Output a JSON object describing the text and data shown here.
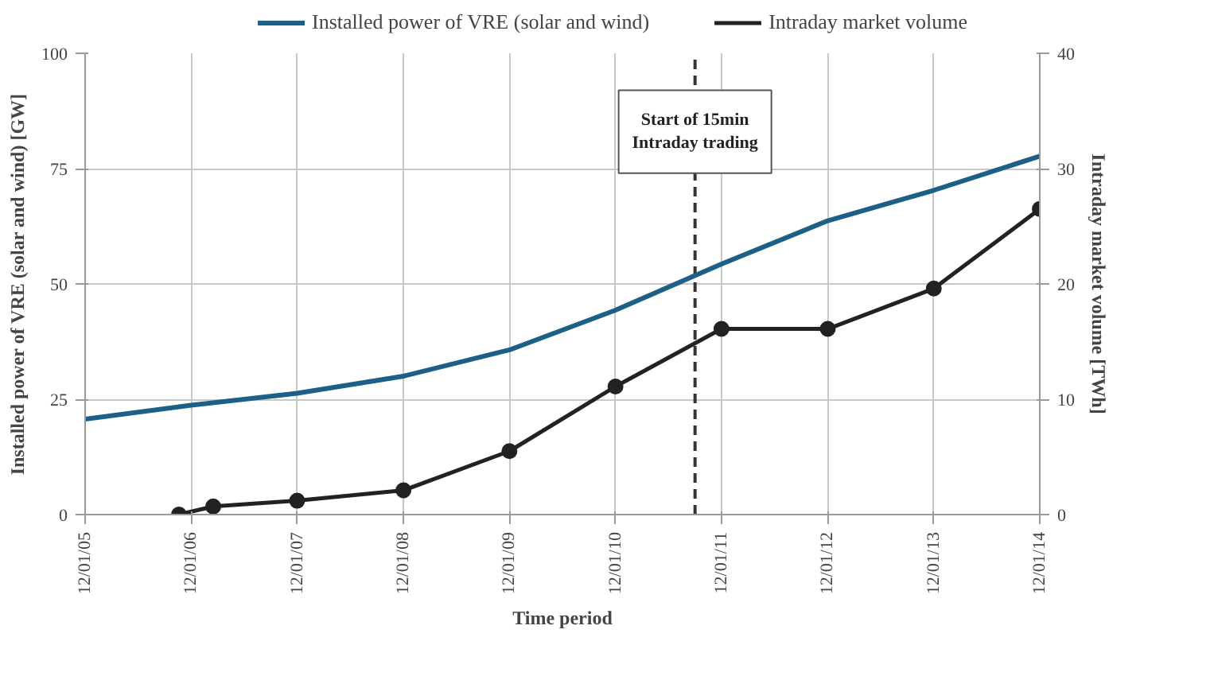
{
  "chart_data": {
    "type": "line",
    "xlabel": "Time period",
    "ylabel": "Installed power of VRE (solar and wind) [GW]",
    "y2label": "Intraday market volume [TWh]",
    "series": [
      {
        "name": "Installed power of VRE (solar and wind)",
        "color": "#1c5f87",
        "marker": "none",
        "x": [
          "2005-12-01",
          "2006-12-01",
          "2007-12-01",
          "2008-12-01",
          "2009-12-01",
          "2010-12-01",
          "2011-12-01",
          "2012-12-01",
          "2013-12-01",
          "2014-12-01"
        ],
        "values": [
          20.7,
          23.7,
          26.3,
          30,
          35.7,
          44.3,
          54.3,
          63.7,
          70.3,
          77.7
        ]
      },
      {
        "name": "Intraday market volume",
        "color": "#222222",
        "marker": "circle",
        "axis": "y2",
        "x": [
          "2006-10-20",
          "2007-02-15",
          "2007-12-01",
          "2008-12-01",
          "2009-12-01",
          "2010-12-01",
          "2011-12-01",
          "2012-12-01",
          "2013-12-01",
          "2014-12-01"
        ],
        "values": [
          0,
          0.7,
          1.2,
          2.1,
          5.5,
          11.1,
          16.1,
          16.1,
          19.6,
          26.5
        ]
      }
    ],
    "xlim": [
      "2005-12-01",
      "2014-12-01"
    ],
    "xticks": [
      {
        "value": "2005-12-01",
        "label": "12/01/05"
      },
      {
        "value": "2006-12-01",
        "label": "12/01/06"
      },
      {
        "value": "2007-12-01",
        "label": "12/01/07"
      },
      {
        "value": "2008-12-01",
        "label": "12/01/08"
      },
      {
        "value": "2009-12-01",
        "label": "12/01/09"
      },
      {
        "value": "2010-12-01",
        "label": "12/01/10"
      },
      {
        "value": "2011-12-01",
        "label": "12/01/11"
      },
      {
        "value": "2012-12-01",
        "label": "12/01/12"
      },
      {
        "value": "2013-12-01",
        "label": "12/01/13"
      },
      {
        "value": "2014-12-01",
        "label": "12/01/14"
      }
    ],
    "ylim": [
      0,
      100
    ],
    "yticks": [
      0,
      25,
      50,
      75,
      100
    ],
    "y2lim": [
      0,
      40
    ],
    "y2ticks": [
      0,
      10,
      20,
      30,
      40
    ],
    "ref_lines": [
      {
        "axis": "x",
        "value": "2011-09-01",
        "label": "Start of 15min\nIntraday trading",
        "color": "#333333",
        "line_style": "dashed"
      }
    ],
    "grid": true,
    "legend": "top"
  }
}
